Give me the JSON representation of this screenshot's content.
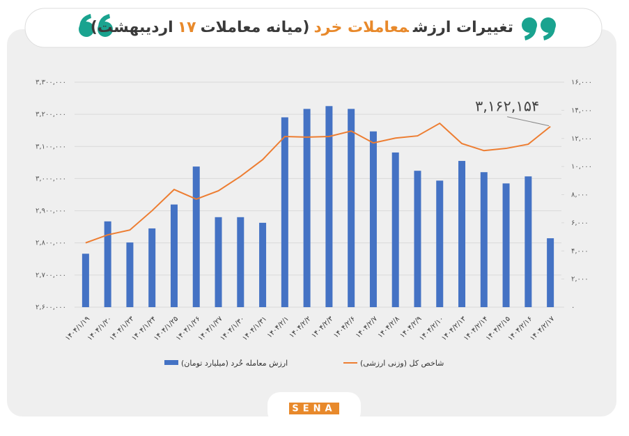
{
  "chart_data": {
    "type": "bar-line",
    "title": [
      {
        "text": "تغییرات ارزش",
        "color": "#3a3a3a"
      },
      {
        "text": "معاملات خرد",
        "color": "#e8892b"
      },
      {
        "text": "(میانه معاملات",
        "color": "#3a3a3a"
      },
      {
        "text": "۱۷",
        "color": "#e8892b"
      },
      {
        "text": "اردیبهشت)",
        "color": "#3a3a3a"
      }
    ],
    "categories": [
      "۱۴۰۴/۱/۱۹",
      "۱۴۰۴/۱/۲۰",
      "۱۴۰۴/۱/۲۳",
      "۱۴۰۴/۱/۲۴",
      "۱۴۰۴/۱/۲۵",
      "۱۴۰۴/۱/۲۶",
      "۱۴۰۴/۱/۲۷",
      "۱۴۰۴/۱/۳۰",
      "۱۴۰۴/۱/۳۱",
      "۱۴۰۴/۲/۱",
      "۱۴۰۴/۲/۲",
      "۱۴۰۴/۲/۳",
      "۱۴۰۴/۲/۶",
      "۱۴۰۴/۲/۷",
      "۱۴۰۴/۲/۸",
      "۱۴۰۴/۲/۹",
      "۱۴۰۴/۲/۱۰",
      "۱۴۰۴/۲/۱۳",
      "۱۴۰۴/۲/۱۴",
      "۱۴۰۴/۲/۱۵",
      "۱۴۰۴/۲/۱۶",
      "۱۴۰۴/۲/۱۷"
    ],
    "series": [
      {
        "name": "ارزش معامله خُرد (میلیارد تومان)",
        "type": "bar",
        "axis": "y2",
        "color": "#4472c4",
        "values": [
          3800,
          6100,
          4600,
          5600,
          7300,
          10000,
          6400,
          6400,
          6000,
          13500,
          14100,
          14300,
          14100,
          12500,
          11000,
          9700,
          9000,
          10400,
          9600,
          8800,
          9300,
          4900
        ]
      },
      {
        "name": "شاخص کل (وزنی ارزشی)",
        "type": "line",
        "axis": "y",
        "color": "#ed7d31",
        "values": [
          2800000,
          2825000,
          2840000,
          2900000,
          2966000,
          2936000,
          2962000,
          3007000,
          3059000,
          3131000,
          3129000,
          3131000,
          3148000,
          3111000,
          3126000,
          3133000,
          3172000,
          3109000,
          3087000,
          3094000,
          3107000,
          3162154
        ],
        "value_labels": [
          null,
          null,
          null,
          null,
          null,
          null,
          null,
          null,
          null,
          null,
          null,
          null,
          null,
          null,
          null,
          null,
          null,
          null,
          null,
          null,
          null,
          "۳,۱۶۲,۱۵۴"
        ]
      }
    ],
    "ylim": [
      2600000,
      3300000
    ],
    "yticks": [
      {
        "value": 2600000,
        "label": "۲,۶۰۰,۰۰۰"
      },
      {
        "value": 2700000,
        "label": "۲,۷۰۰,۰۰۰"
      },
      {
        "value": 2800000,
        "label": "۲,۸۰۰,۰۰۰"
      },
      {
        "value": 2900000,
        "label": "۲,۹۰۰,۰۰۰"
      },
      {
        "value": 3000000,
        "label": "۳,۰۰۰,۰۰۰"
      },
      {
        "value": 3100000,
        "label": "۳,۱۰۰,۰۰۰"
      },
      {
        "value": 3200000,
        "label": "۳,۲۰۰,۰۰۰"
      },
      {
        "value": 3300000,
        "label": "۳,۳۰۰,۰۰۰"
      }
    ],
    "y2lim": [
      0,
      16000
    ],
    "y2ticks": [
      {
        "value": 0,
        "label": "۰"
      },
      {
        "value": 2000,
        "label": "۲,۰۰۰"
      },
      {
        "value": 4000,
        "label": "۴,۰۰۰"
      },
      {
        "value": 6000,
        "label": "۶,۰۰۰"
      },
      {
        "value": 8000,
        "label": "۸,۰۰۰"
      },
      {
        "value": 10000,
        "label": "۱۰,۰۰۰"
      },
      {
        "value": 12000,
        "label": "۱۲,۰۰۰"
      },
      {
        "value": 14000,
        "label": "۱۴,۰۰۰"
      },
      {
        "value": 16000,
        "label": "۱۶,۰۰۰"
      }
    ],
    "grid": true,
    "legend": "bottom",
    "logo": "SENA"
  }
}
